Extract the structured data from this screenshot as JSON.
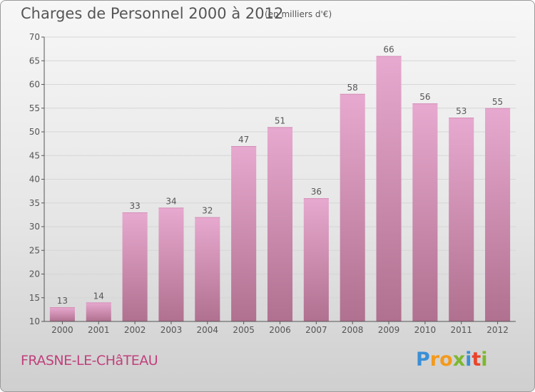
{
  "title": "Charges de Personnel 2000 à 2012",
  "subtitle": "(en milliers d'€)",
  "place": "FRASNE-LE-CHâTEAU",
  "logo": {
    "text": "Proxiti",
    "letters": [
      {
        "ch": "P",
        "color": "#3a8fd6"
      },
      {
        "ch": "r",
        "color": "#f39a1e"
      },
      {
        "ch": "o",
        "color": "#f39a1e"
      },
      {
        "ch": "x",
        "color": "#7cb82f"
      },
      {
        "ch": "i",
        "color": "#3a8fd6"
      },
      {
        "ch": "t",
        "color": "#e8452c"
      },
      {
        "ch": "i",
        "color": "#7cb82f"
      }
    ]
  },
  "colors": {
    "bar_top": "#e7a9cf",
    "bar_bottom": "#b0708f",
    "axis": "#555555",
    "grid": "#d6d6d6",
    "text": "#555555"
  },
  "chart_data": {
    "type": "bar",
    "categories": [
      "2000",
      "2001",
      "2002",
      "2003",
      "2004",
      "2005",
      "2006",
      "2007",
      "2008",
      "2009",
      "2010",
      "2011",
      "2012"
    ],
    "values": [
      13,
      14,
      33,
      34,
      32,
      47,
      51,
      36,
      58,
      66,
      56,
      53,
      55
    ],
    "ylim": [
      10,
      70
    ],
    "yticks": [
      10,
      15,
      20,
      25,
      30,
      35,
      40,
      45,
      50,
      55,
      60,
      65,
      70
    ],
    "grid": true,
    "legend": "none"
  }
}
